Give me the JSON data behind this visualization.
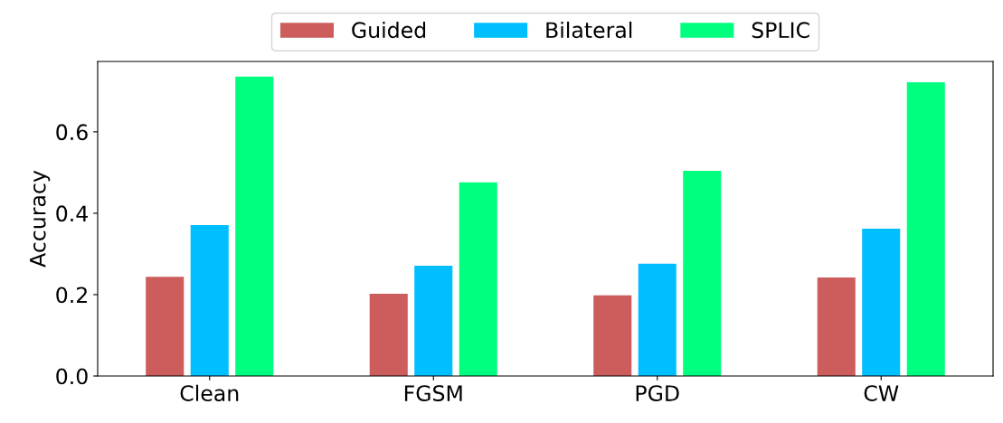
{
  "chart_data": {
    "type": "bar",
    "ylabel": "Accuracy",
    "categories": [
      "Clean",
      "FGSM",
      "PGD",
      "CW"
    ],
    "series": [
      {
        "name": "Guided",
        "color": "#cd5c5c",
        "values": [
          0.244,
          0.202,
          0.198,
          0.242
        ]
      },
      {
        "name": "Bilateral",
        "color": "#00bfff",
        "values": [
          0.371,
          0.271,
          0.276,
          0.362
        ]
      },
      {
        "name": "SPLIC",
        "color": "#00ff7f",
        "values": [
          0.736,
          0.476,
          0.504,
          0.722
        ]
      }
    ],
    "ylim": [
      0,
      0.773
    ],
    "yticks": [
      {
        "value": 0,
        "label": "0.0"
      },
      0.2,
      0.4,
      0.6
    ],
    "grid": false,
    "legend": "top"
  }
}
